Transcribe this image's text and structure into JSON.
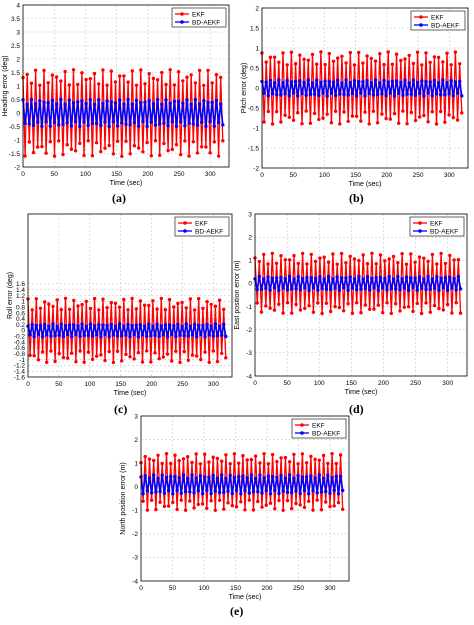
{
  "colors": {
    "ekf": "#ff0000",
    "bd_aekf": "#0000ff"
  },
  "panels": [
    {
      "label": "(a)"
    },
    {
      "label": "(b)"
    },
    {
      "label": "(c)"
    },
    {
      "label": "(d)"
    },
    {
      "label": "(e)"
    }
  ],
  "chart_data": [
    {
      "type": "line",
      "xlabel": "Time (sec)",
      "ylabel": "Heading error (deg)",
      "xlim": [
        0,
        330
      ],
      "ylim": [
        -2,
        4
      ],
      "xticks": [
        0,
        50,
        100,
        150,
        200,
        250,
        300
      ],
      "yticks": [
        -2,
        -1.5,
        -1,
        -0.5,
        0,
        0.5,
        1,
        1.5,
        2,
        2.5,
        3,
        3.5,
        4
      ],
      "ytick_labels": [
        "-2",
        "-1.5",
        "-1",
        "-0.5",
        "0",
        "0.5",
        "1",
        "1.5",
        "2",
        "2.5",
        "3",
        "3.5",
        "4"
      ],
      "grid": true,
      "legend_position": "top-right",
      "series": [
        {
          "name": "EKF",
          "x_start": 0,
          "x_end": 320,
          "count": 96,
          "period": 5.6,
          "amplitude": 1.6,
          "offset": 0
        },
        {
          "name": "BD-AEKF",
          "x_start": 0,
          "x_end": 320,
          "count": 96,
          "period": 5.6,
          "amplitude": 0.5,
          "offset": 0
        }
      ]
    },
    {
      "type": "line",
      "xlabel": "Time (sec)",
      "ylabel": "Pitch error (deg)",
      "xlim": [
        0,
        330
      ],
      "ylim": [
        -2,
        2
      ],
      "xticks": [
        0,
        50,
        100,
        150,
        200,
        250,
        300
      ],
      "yticks": [
        -2,
        -1.5,
        -1,
        -0.5,
        0,
        0.5,
        1,
        1.5,
        2
      ],
      "ytick_labels": [
        "-2",
        "-1.5",
        "-1",
        "-0.5",
        "0",
        "0.5",
        "1",
        "1.5",
        "2"
      ],
      "grid": true,
      "legend_position": "top-right",
      "series": [
        {
          "name": "EKF",
          "x_start": 0,
          "x_end": 320,
          "count": 96,
          "period": 5.6,
          "amplitude": 0.9,
          "offset": 0
        },
        {
          "name": "BD-AEKF",
          "x_start": 0,
          "x_end": 320,
          "count": 96,
          "period": 5.6,
          "amplitude": 0.2,
          "offset": 0
        }
      ]
    },
    {
      "type": "line",
      "xlabel": "Time (sec)",
      "ylabel": "Roll error (deg)",
      "xlim": [
        0,
        330
      ],
      "ylim": [
        -1.6,
        4
      ],
      "xticks": [
        0,
        50,
        100,
        150,
        200,
        250,
        300
      ],
      "yticks": [
        -1.6,
        -1.4,
        -1.2,
        -1,
        -0.8,
        -0.6,
        -0.4,
        -0.2,
        0,
        0.2,
        0.4,
        0.6,
        0.8,
        1,
        1.2,
        1.4,
        1.6
      ],
      "ytick_labels": [
        "-1.6",
        "-1.4",
        "-1.2",
        "-1",
        "-0.8",
        "-0.6",
        "-0.4",
        "-0.2",
        "0",
        "0.2",
        "0.4",
        "0.6",
        "0.8",
        "1",
        "1.2",
        "1.4",
        "1.6"
      ],
      "grid": true,
      "legend_position": "top-right",
      "series": [
        {
          "name": "EKF",
          "x_start": 0,
          "x_end": 320,
          "count": 96,
          "period": 5.6,
          "amplitude": 1.1,
          "offset": 0
        },
        {
          "name": "BD-AEKF",
          "x_start": 0,
          "x_end": 320,
          "count": 96,
          "period": 5.6,
          "amplitude": 0.22,
          "offset": 0
        }
      ]
    },
    {
      "type": "line",
      "xlabel": "Time (sec)",
      "ylabel": "East position error (m)",
      "xlim": [
        0,
        330
      ],
      "ylim": [
        -4,
        3
      ],
      "xticks": [
        0,
        50,
        100,
        150,
        200,
        250,
        300
      ],
      "yticks": [
        -4,
        -3,
        -2,
        -1,
        0,
        1,
        2,
        3
      ],
      "ytick_labels": [
        "-4",
        "-3",
        "-2",
        "-1",
        "0",
        "1",
        "2",
        "3"
      ],
      "grid": true,
      "legend_position": "top-right",
      "series": [
        {
          "name": "EKF",
          "x_start": 0,
          "x_end": 320,
          "count": 96,
          "period": 5.6,
          "amplitude": 1.3,
          "offset": 0
        },
        {
          "name": "BD-AEKF",
          "x_start": 0,
          "x_end": 320,
          "count": 96,
          "period": 5.6,
          "amplitude": 0.3,
          "offset": 0
        }
      ]
    },
    {
      "type": "line",
      "xlabel": "Time (sec)",
      "ylabel": "North position error (m)",
      "xlim": [
        0,
        330
      ],
      "ylim": [
        -4,
        3
      ],
      "xticks": [
        0,
        50,
        100,
        150,
        200,
        250,
        300
      ],
      "yticks": [
        -4,
        -3,
        -2,
        -1,
        0,
        1,
        2,
        3
      ],
      "ytick_labels": [
        "-4",
        "-3",
        "-2",
        "-1",
        "0",
        "1",
        "2",
        "3"
      ],
      "grid": true,
      "legend_position": "top-right",
      "series": [
        {
          "name": "EKF",
          "x_start": 0,
          "x_end": 320,
          "count": 96,
          "period": 5.6,
          "amplitude": 1.2,
          "offset": 0.2
        },
        {
          "name": "BD-AEKF",
          "x_start": 0,
          "x_end": 320,
          "count": 96,
          "period": 5.6,
          "amplitude": 0.4,
          "offset": 0.1
        }
      ]
    }
  ]
}
